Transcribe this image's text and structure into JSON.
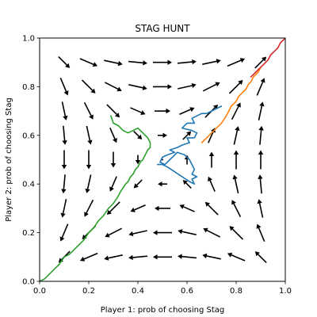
{
  "chart_data": {
    "type": "line",
    "title": "STAG HUNT",
    "xlabel": "Player 1: prob of choosing Stag",
    "ylabel": "Player 2: prob of choosing Stag",
    "xlim": [
      0,
      1
    ],
    "ylim": [
      0,
      1
    ],
    "xticks": [
      "0.0",
      "0.2",
      "0.4",
      "0.6",
      "0.8",
      "1.0"
    ],
    "yticks": [
      "0.0",
      "0.2",
      "0.4",
      "0.6",
      "0.8",
      "1.0"
    ],
    "grid": false,
    "legend": "none",
    "vector_field": {
      "grid": [
        0.1,
        0.2,
        0.3,
        0.4,
        0.5,
        0.6,
        0.7,
        0.8,
        0.9
      ],
      "threshold": 0.5,
      "color": "#000000"
    },
    "series": [
      {
        "color": "#1f77b4",
        "x": [
          0.74,
          0.72,
          0.7,
          0.68,
          0.66,
          0.64,
          0.62,
          0.63,
          0.6,
          0.58,
          0.62,
          0.64,
          0.63,
          0.6,
          0.61,
          0.58,
          0.56,
          0.53,
          0.55,
          0.52,
          0.5,
          0.49,
          0.51,
          0.53,
          0.55,
          0.56,
          0.59,
          0.61,
          0.62,
          0.63,
          0.62,
          0.64,
          0.62,
          0.63,
          0.61,
          0.58,
          0.55,
          0.52,
          0.5,
          0.48
        ],
        "y": [
          0.72,
          0.71,
          0.7,
          0.69,
          0.69,
          0.68,
          0.67,
          0.65,
          0.65,
          0.63,
          0.62,
          0.61,
          0.59,
          0.59,
          0.57,
          0.56,
          0.55,
          0.54,
          0.53,
          0.52,
          0.51,
          0.49,
          0.48,
          0.5,
          0.52,
          0.53,
          0.52,
          0.5,
          0.48,
          0.46,
          0.44,
          0.43,
          0.42,
          0.4,
          0.41,
          0.43,
          0.45,
          0.47,
          0.48,
          0.48
        ]
      },
      {
        "color": "#ff7f0e",
        "x": [
          0.66,
          0.68,
          0.7,
          0.72,
          0.74,
          0.76,
          0.77,
          0.78,
          0.79,
          0.8,
          0.81,
          0.82,
          0.83,
          0.84,
          0.85,
          0.86,
          0.87,
          0.88,
          0.89,
          0.9
        ],
        "y": [
          0.57,
          0.59,
          0.61,
          0.63,
          0.65,
          0.68,
          0.7,
          0.72,
          0.73,
          0.74,
          0.76,
          0.77,
          0.78,
          0.79,
          0.81,
          0.82,
          0.84,
          0.85,
          0.86,
          0.88
        ]
      },
      {
        "color": "#2ca02c",
        "x": [
          0.0,
          0.02,
          0.04,
          0.06,
          0.08,
          0.1,
          0.12,
          0.14,
          0.16,
          0.18,
          0.2,
          0.22,
          0.24,
          0.26,
          0.28,
          0.3,
          0.32,
          0.33,
          0.35,
          0.36,
          0.37,
          0.38,
          0.39,
          0.4,
          0.41,
          0.42,
          0.43,
          0.44,
          0.45,
          0.45,
          0.44,
          0.43,
          0.42,
          0.41,
          0.4,
          0.38,
          0.36,
          0.34,
          0.33,
          0.32,
          0.3,
          0.29
        ],
        "y": [
          0.0,
          0.01,
          0.03,
          0.05,
          0.07,
          0.1,
          0.11,
          0.13,
          0.15,
          0.17,
          0.2,
          0.22,
          0.25,
          0.27,
          0.3,
          0.32,
          0.35,
          0.37,
          0.4,
          0.41,
          0.43,
          0.44,
          0.46,
          0.47,
          0.49,
          0.5,
          0.52,
          0.54,
          0.55,
          0.57,
          0.59,
          0.6,
          0.61,
          0.62,
          0.63,
          0.62,
          0.61,
          0.62,
          0.63,
          0.64,
          0.65,
          0.68
        ]
      },
      {
        "color": "#d62728",
        "x": [
          0.86,
          0.88,
          0.9,
          0.91,
          0.92,
          0.93,
          0.94,
          0.95,
          0.96,
          0.97,
          0.98,
          0.99,
          1.0
        ],
        "y": [
          0.84,
          0.86,
          0.88,
          0.89,
          0.9,
          0.91,
          0.93,
          0.94,
          0.95,
          0.96,
          0.98,
          0.99,
          1.0
        ]
      }
    ]
  }
}
